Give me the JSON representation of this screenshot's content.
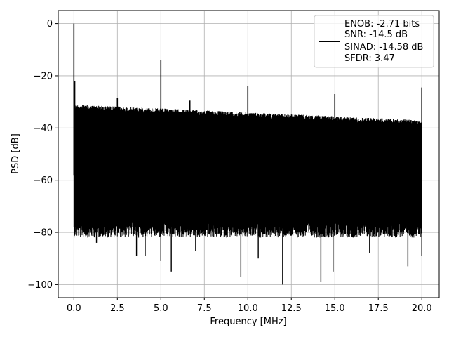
{
  "chart_data": {
    "type": "line",
    "title": "",
    "xlabel": "Frequency [MHz]",
    "ylabel": "PSD [dB]",
    "xlim": [
      -0.9,
      21.0
    ],
    "ylim": [
      -105,
      5
    ],
    "xticks": [
      0.0,
      2.5,
      5.0,
      7.5,
      10.0,
      12.5,
      15.0,
      17.5,
      20.0
    ],
    "xtick_labels": [
      "0.0",
      "2.5",
      "5.0",
      "7.5",
      "10.0",
      "12.5",
      "15.0",
      "17.5",
      "20.0"
    ],
    "yticks": [
      0,
      -20,
      -40,
      -60,
      -80,
      -100
    ],
    "ytick_labels": [
      "0",
      "−20",
      "−40",
      "−60",
      "−80",
      "−100"
    ],
    "grid": true,
    "legend_position": "upper-right",
    "line_color": "#000000",
    "legend": [
      "ENOB: -2.71 bits",
      "SNR: -14.5 dB",
      "SINAD: -14.58 dB",
      "SFDR: 3.47"
    ],
    "noise_floor": {
      "x_range": [
        0.0,
        20.0
      ],
      "top_start": -30,
      "top_end": -36,
      "bottom_typical": -76
    },
    "peaks": [
      {
        "x": 0.0,
        "y": 0.0
      },
      {
        "x": 0.05,
        "y": -22
      },
      {
        "x": 2.5,
        "y": -28.5
      },
      {
        "x": 5.0,
        "y": -14
      },
      {
        "x": 6.67,
        "y": -29.5
      },
      {
        "x": 10.0,
        "y": -24
      },
      {
        "x": 15.0,
        "y": -27
      },
      {
        "x": 20.0,
        "y": -24.5
      }
    ],
    "dips": [
      {
        "x": 0.1,
        "y": -80
      },
      {
        "x": 1.3,
        "y": -84
      },
      {
        "x": 3.6,
        "y": -89
      },
      {
        "x": 4.1,
        "y": -89
      },
      {
        "x": 5.0,
        "y": -91
      },
      {
        "x": 5.6,
        "y": -95
      },
      {
        "x": 7.0,
        "y": -87
      },
      {
        "x": 9.6,
        "y": -97
      },
      {
        "x": 10.6,
        "y": -90
      },
      {
        "x": 12.0,
        "y": -100
      },
      {
        "x": 14.2,
        "y": -99
      },
      {
        "x": 14.9,
        "y": -95
      },
      {
        "x": 17.0,
        "y": -88
      },
      {
        "x": 19.2,
        "y": -93
      },
      {
        "x": 20.0,
        "y": -89
      }
    ]
  }
}
